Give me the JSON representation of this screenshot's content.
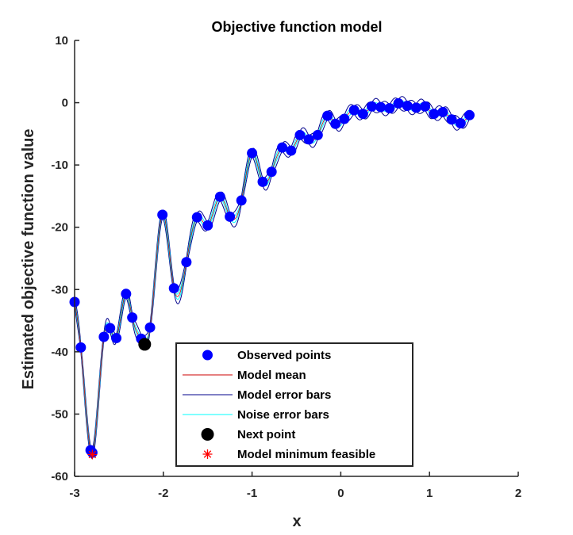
{
  "chart_data": {
    "type": "line",
    "title": "Objective function model",
    "xlabel": "x",
    "ylabel": "Estimated objective function value",
    "xlim": [
      -3,
      2
    ],
    "ylim": [
      -60,
      10
    ],
    "xticks": [
      -3,
      -2,
      -1,
      0,
      1,
      2
    ],
    "yticks": [
      -60,
      -50,
      -40,
      -30,
      -20,
      -10,
      0,
      10
    ],
    "xtick_labels": [
      "-3",
      "-2",
      "-1",
      "0",
      "1",
      "2"
    ],
    "ytick_labels": [
      "-60",
      "-50",
      "-40",
      "-30",
      "-20",
      "-10",
      "0",
      "10"
    ],
    "grid": false,
    "legend_position": "inside bottom, right of center",
    "colors": {
      "observed": "#0000ff",
      "model_mean": "#cc0000",
      "model_error": "#00008b",
      "noise_error": "#00ffff",
      "next_point": "#000000",
      "minimum": "#ff0000"
    },
    "legend": [
      {
        "key": "observed",
        "label": "Observed points"
      },
      {
        "key": "model_mean",
        "label": "Model mean"
      },
      {
        "key": "model_error",
        "label": "Model error bars"
      },
      {
        "key": "noise_error",
        "label": "Noise error bars"
      },
      {
        "key": "next_point",
        "label": "Next point"
      },
      {
        "key": "minimum",
        "label": "Model minimum feasible"
      }
    ],
    "series": [
      {
        "name": "Observed points",
        "kind": "scatter",
        "points": [
          [
            -3.0,
            -32.0
          ],
          [
            -2.93,
            -39.3
          ],
          [
            -2.82,
            -55.8
          ],
          [
            -2.8,
            -56.2
          ],
          [
            -2.67,
            -37.6
          ],
          [
            -2.6,
            -36.2
          ],
          [
            -2.53,
            -37.8
          ],
          [
            -2.42,
            -30.7
          ],
          [
            -2.35,
            -34.5
          ],
          [
            -2.25,
            -37.9
          ],
          [
            -2.15,
            -36.1
          ],
          [
            -2.01,
            -18.0
          ],
          [
            -1.88,
            -29.8
          ],
          [
            -1.74,
            -25.6
          ],
          [
            -1.62,
            -18.4
          ],
          [
            -1.5,
            -19.7
          ],
          [
            -1.36,
            -15.1
          ],
          [
            -1.25,
            -18.3
          ],
          [
            -1.12,
            -15.7
          ],
          [
            -1.0,
            -8.1
          ],
          [
            -0.88,
            -12.7
          ],
          [
            -0.78,
            -11.1
          ],
          [
            -0.66,
            -7.2
          ],
          [
            -0.56,
            -7.7
          ],
          [
            -0.46,
            -5.2
          ],
          [
            -0.36,
            -5.9
          ],
          [
            -0.26,
            -5.2
          ],
          [
            -0.15,
            -2.1
          ],
          [
            -0.06,
            -3.4
          ],
          [
            0.04,
            -2.6
          ],
          [
            0.15,
            -1.2
          ],
          [
            0.25,
            -1.8
          ],
          [
            0.35,
            -0.6
          ],
          [
            0.45,
            -0.7
          ],
          [
            0.55,
            -0.9
          ],
          [
            0.65,
            -0.1
          ],
          [
            0.75,
            -0.5
          ],
          [
            0.85,
            -0.8
          ],
          [
            0.95,
            -0.6
          ],
          [
            1.05,
            -1.8
          ],
          [
            1.15,
            -1.5
          ],
          [
            1.25,
            -2.7
          ],
          [
            1.35,
            -3.3
          ],
          [
            1.45,
            -2.0
          ]
        ]
      },
      {
        "name": "Model mean",
        "kind": "line"
      },
      {
        "name": "Model error bars",
        "kind": "line"
      },
      {
        "name": "Noise error bars",
        "kind": "line"
      },
      {
        "name": "Next point",
        "kind": "scatter",
        "points": [
          [
            -2.21,
            -38.8
          ]
        ]
      },
      {
        "name": "Model minimum feasible",
        "kind": "marker",
        "points": [
          [
            -2.8,
            -56.5
          ]
        ]
      }
    ]
  }
}
